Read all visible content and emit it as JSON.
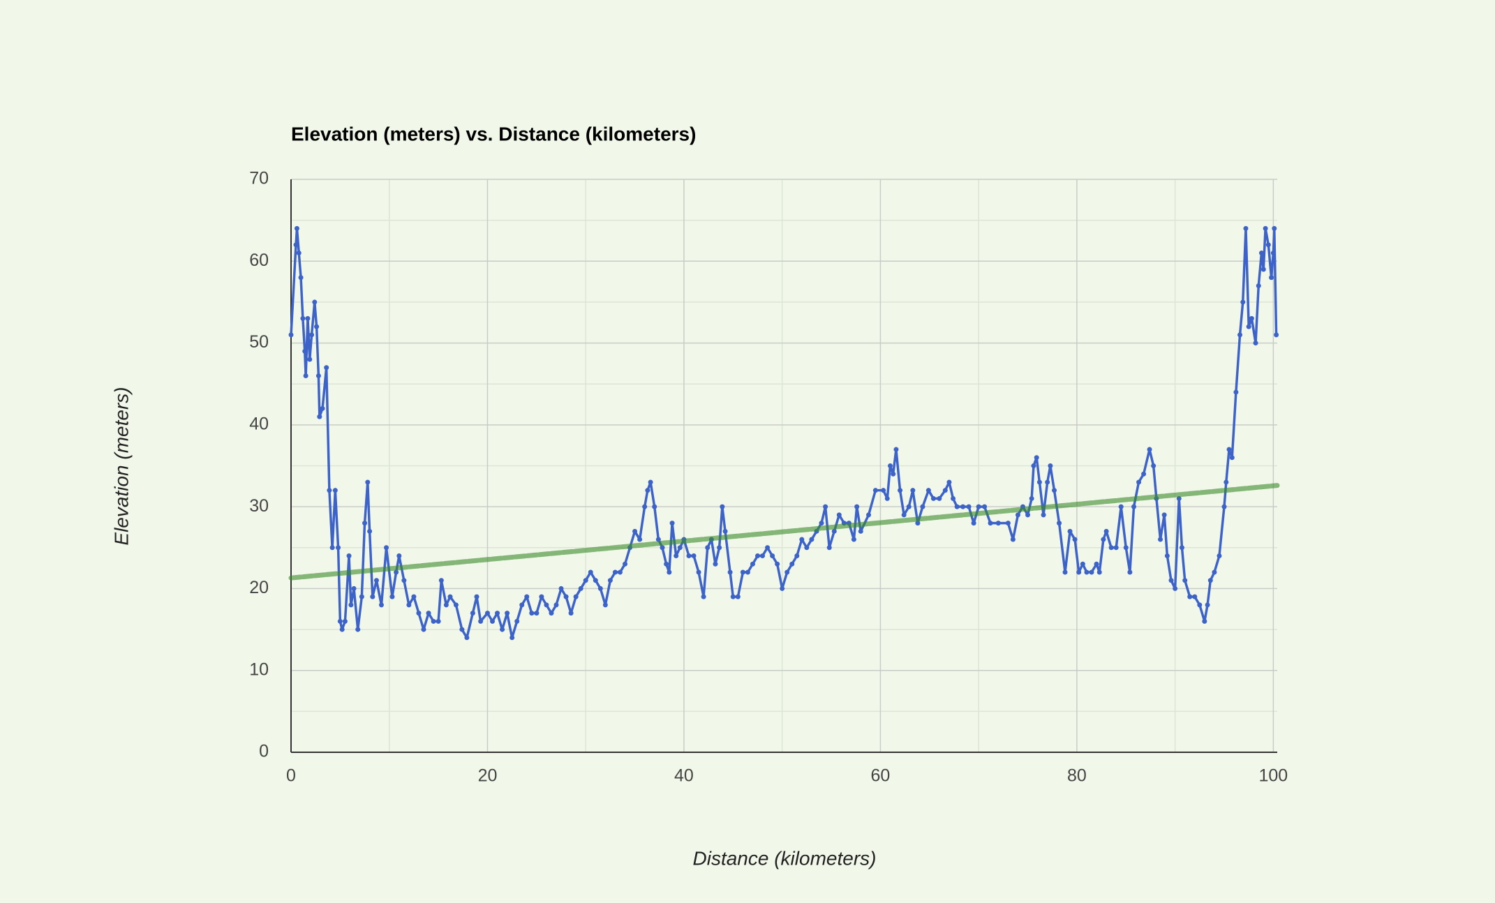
{
  "chart_data": {
    "type": "line",
    "title": "Elevation (meters) vs. Distance (kilometers)",
    "x_label": "Distance (kilometers)",
    "y_label": "Elevation (meters)",
    "xlim": [
      0,
      100.4
    ],
    "ylim": [
      0,
      70
    ],
    "xticks": [
      0,
      20,
      40,
      60,
      80,
      100
    ],
    "yticks": [
      0,
      10,
      20,
      30,
      40,
      50,
      60,
      70
    ],
    "x_minor_ticks": [
      10,
      30,
      50,
      70,
      90
    ],
    "y_minor_ticks": [
      5,
      15,
      25,
      35,
      45,
      55,
      65
    ],
    "grid": true,
    "x": [
      0,
      0.5,
      0.6,
      0.8,
      1.0,
      1.2,
      1.4,
      1.5,
      1.7,
      1.9,
      2.1,
      2.4,
      2.6,
      2.8,
      2.9,
      3.2,
      3.6,
      3.9,
      4.2,
      4.5,
      4.8,
      5.0,
      5.2,
      5.5,
      5.9,
      6.1,
      6.4,
      6.8,
      7.2,
      7.5,
      7.8,
      8.0,
      8.3,
      8.7,
      9.2,
      9.7,
      10.3,
      10.7,
      11.0,
      11.5,
      12.0,
      12.5,
      13.0,
      13.5,
      14.0,
      14.5,
      15.0,
      15.3,
      15.8,
      16.2,
      16.8,
      17.4,
      17.9,
      18.5,
      18.9,
      19.3,
      20.0,
      20.5,
      21.0,
      21.5,
      22.0,
      22.5,
      23.0,
      23.5,
      24.0,
      24.5,
      25.0,
      25.5,
      26.0,
      26.5,
      27.0,
      27.5,
      28.0,
      28.5,
      29.0,
      29.5,
      30.0,
      30.5,
      31.0,
      31.5,
      32.0,
      32.5,
      33.0,
      33.5,
      34.0,
      34.5,
      35.0,
      35.5,
      36.0,
      36.3,
      36.6,
      37.0,
      37.4,
      37.8,
      38.2,
      38.5,
      38.8,
      39.2,
      39.6,
      40.0,
      40.5,
      41.0,
      41.5,
      42.0,
      42.4,
      42.8,
      43.2,
      43.6,
      43.9,
      44.2,
      44.7,
      45.0,
      45.5,
      46.0,
      46.5,
      47.0,
      47.5,
      48.0,
      48.5,
      49.0,
      49.5,
      50.0,
      50.5,
      51.0,
      51.5,
      52.0,
      52.5,
      53.0,
      53.5,
      54.0,
      54.4,
      54.8,
      55.3,
      55.8,
      56.3,
      56.8,
      57.3,
      57.6,
      58.0,
      58.8,
      59.5,
      60.3,
      60.7,
      61.0,
      61.3,
      61.6,
      62.0,
      62.4,
      62.9,
      63.3,
      63.8,
      64.3,
      64.9,
      65.4,
      66.0,
      66.6,
      67.0,
      67.4,
      67.8,
      68.4,
      69.0,
      69.5,
      70.0,
      70.6,
      71.2,
      72.0,
      73.0,
      73.5,
      74.0,
      74.5,
      75.0,
      75.4,
      75.6,
      75.9,
      76.2,
      76.6,
      77.0,
      77.3,
      77.7,
      78.2,
      78.8,
      79.3,
      79.8,
      80.2,
      80.6,
      81.0,
      81.5,
      82.0,
      82.3,
      82.7,
      83.0,
      83.5,
      84.0,
      84.5,
      85.0,
      85.4,
      85.8,
      86.3,
      86.8,
      87.4,
      87.8,
      88.1,
      88.5,
      88.9,
      89.2,
      89.6,
      90.0,
      90.4,
      90.7,
      91.0,
      91.5,
      92.0,
      92.5,
      93.0,
      93.3,
      93.6,
      94.0,
      94.5,
      95.0,
      95.2,
      95.5,
      95.8,
      96.2,
      96.6,
      96.9,
      97.2,
      97.5,
      97.8,
      98.2,
      98.5,
      98.8,
      99.0,
      99.2,
      99.5,
      99.8,
      100.0,
      100.1,
      100.3
    ],
    "series": [
      {
        "color": "#3d63c9",
        "values": [
          51,
          62,
          64,
          61,
          58,
          53,
          49,
          46,
          53,
          48,
          51,
          55,
          52,
          46,
          41,
          42,
          47,
          32,
          25,
          32,
          25,
          16,
          15,
          16,
          24,
          18,
          20,
          15,
          19,
          28,
          33,
          27,
          19,
          21,
          18,
          25,
          19,
          22,
          24,
          21,
          18,
          19,
          17,
          15,
          17,
          16,
          16,
          21,
          18,
          19,
          18,
          15,
          14,
          17,
          19,
          16,
          17,
          16,
          17,
          15,
          17,
          14,
          16,
          18,
          19,
          17,
          17,
          19,
          18,
          17,
          18,
          20,
          19,
          17,
          19,
          20,
          21,
          22,
          21,
          20,
          18,
          21,
          22,
          22,
          23,
          25,
          27,
          26,
          30,
          32,
          33,
          30,
          26,
          25,
          23,
          22,
          28,
          24,
          25,
          26,
          24,
          24,
          22,
          19,
          25,
          26,
          23,
          25,
          30,
          27,
          22,
          19,
          19,
          22,
          22,
          23,
          24,
          24,
          25,
          24,
          23,
          20,
          22,
          23,
          24,
          26,
          25,
          26,
          27,
          28,
          30,
          25,
          27,
          29,
          28,
          28,
          26,
          30,
          27,
          29,
          32,
          32,
          31,
          35,
          34,
          37,
          32,
          29,
          30,
          32,
          28,
          30,
          32,
          31,
          31,
          32,
          33,
          31,
          30,
          30,
          30,
          28,
          30,
          30,
          28,
          28,
          28,
          26,
          29,
          30,
          29,
          31,
          35,
          36,
          33,
          29,
          33,
          35,
          32,
          28,
          22,
          27,
          26,
          22,
          23,
          22,
          22,
          23,
          22,
          26,
          27,
          25,
          25,
          30,
          25,
          22,
          30,
          33,
          34,
          37,
          35,
          31,
          26,
          29,
          24,
          21,
          20,
          31,
          25,
          21,
          19,
          19,
          18,
          16,
          18,
          21,
          22,
          24,
          30,
          33,
          37,
          36,
          44,
          51,
          55,
          64,
          52,
          53,
          50,
          57,
          61,
          59,
          64,
          62,
          58,
          61,
          64,
          51
        ]
      }
    ],
    "trendline": {
      "x": [
        0,
        100.4
      ],
      "values": [
        21.3,
        32.6
      ],
      "color": "#3a8a2a"
    }
  }
}
